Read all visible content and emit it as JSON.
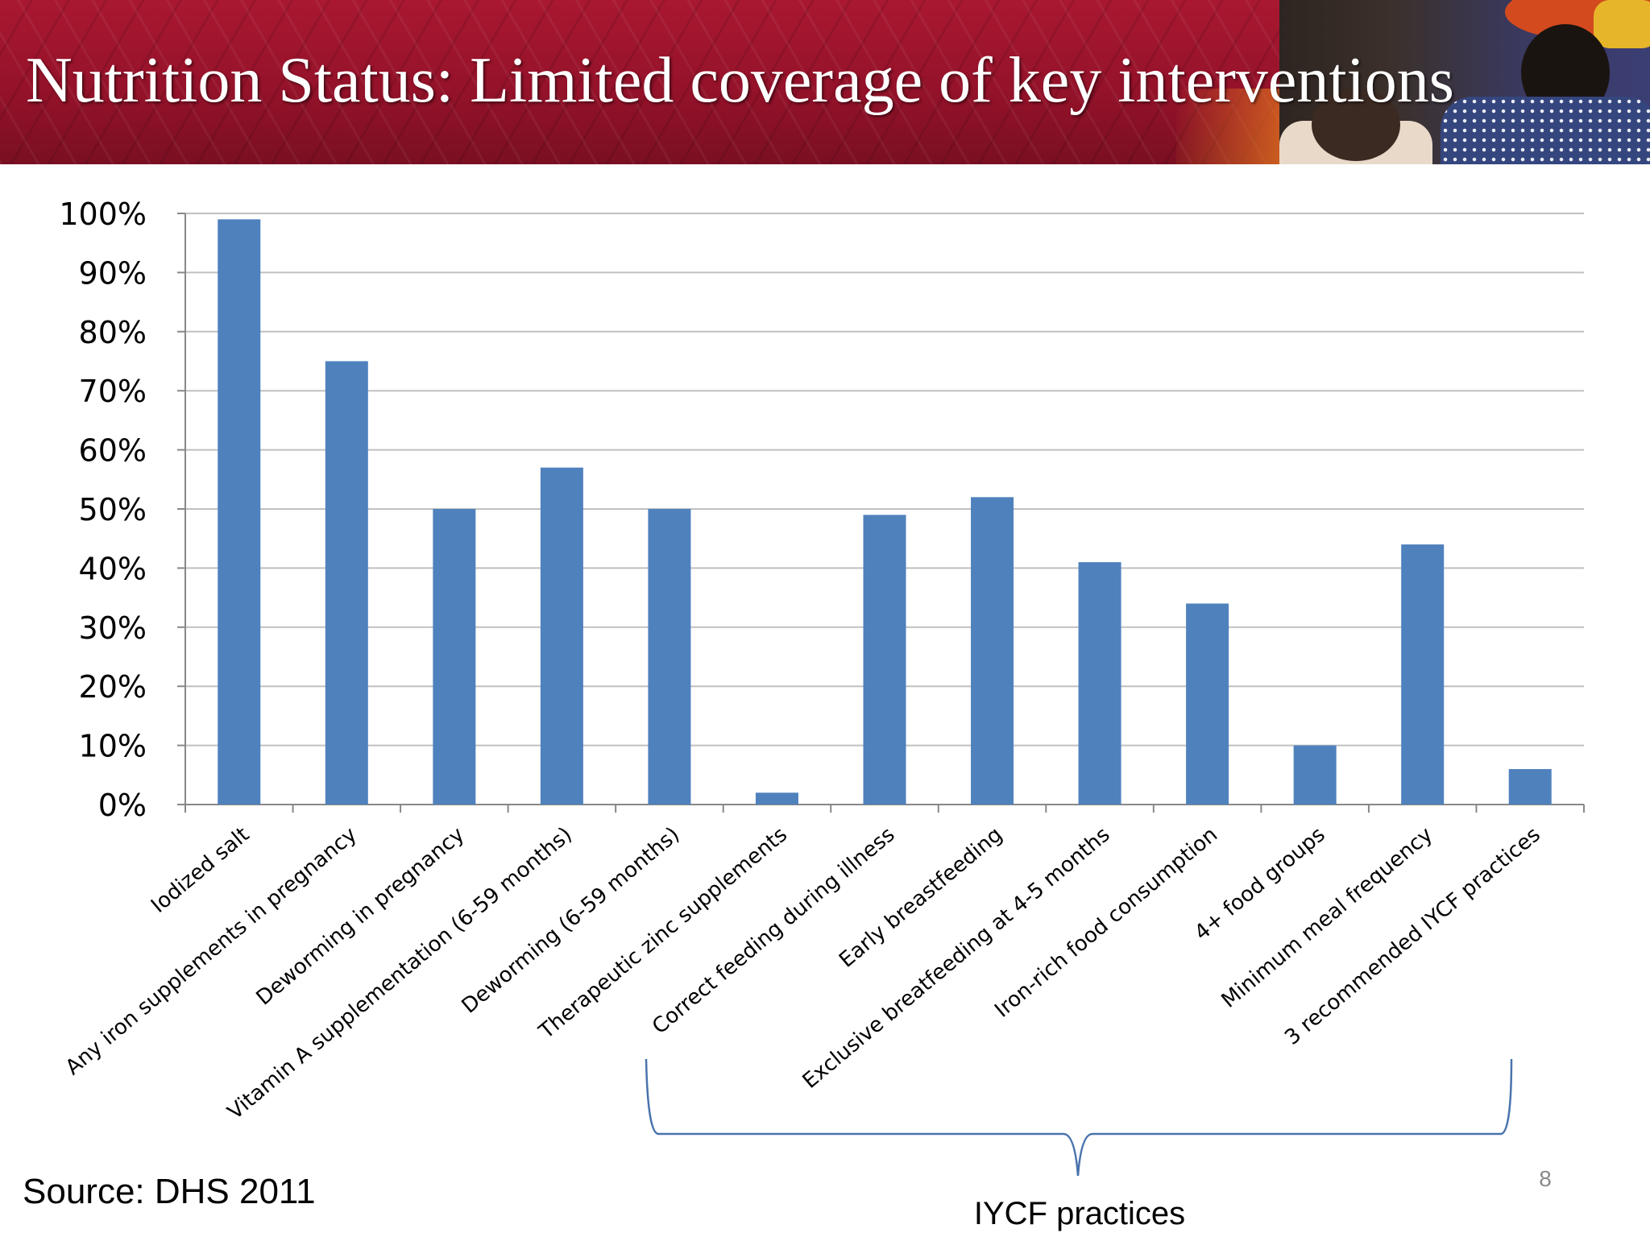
{
  "slide": {
    "title": "Nutrition Status: Limited coverage of key interventions",
    "source": "Source: DHS 2011",
    "page_number": "8",
    "bracket_label": "IYCF practices"
  },
  "colors": {
    "header_red": "#a91830",
    "bar_blue": "#4f81bd",
    "bracket_blue": "#4a73ad",
    "gridline_gray": "#c0c0c0"
  },
  "chart_data": {
    "type": "bar",
    "title": "",
    "xlabel": "",
    "ylabel": "",
    "ylim": [
      0,
      100
    ],
    "yticks": [
      "0%",
      "10%",
      "20%",
      "30%",
      "40%",
      "50%",
      "60%",
      "70%",
      "80%",
      "90%",
      "100%"
    ],
    "grid": true,
    "categories": [
      "Iodized salt",
      "Any iron supplements in pregnancy",
      "Deworming in pregnancy",
      "Vitamin A supplementation (6-59 months)",
      "Deworming (6-59 months)",
      "Therapeutic zinc supplements",
      "Correct feeding during illness",
      "Early breastfeeding",
      "Exclusive breatfeeding at 4-5 months",
      "Iron-rich food consumption",
      "4+ food groups",
      "Minimum meal frequency",
      "3 recommended IYCF practices"
    ],
    "series": [
      {
        "values": [
          99,
          75,
          50,
          57,
          50,
          2,
          49,
          52,
          41,
          34,
          10,
          44,
          6
        ]
      }
    ]
  }
}
